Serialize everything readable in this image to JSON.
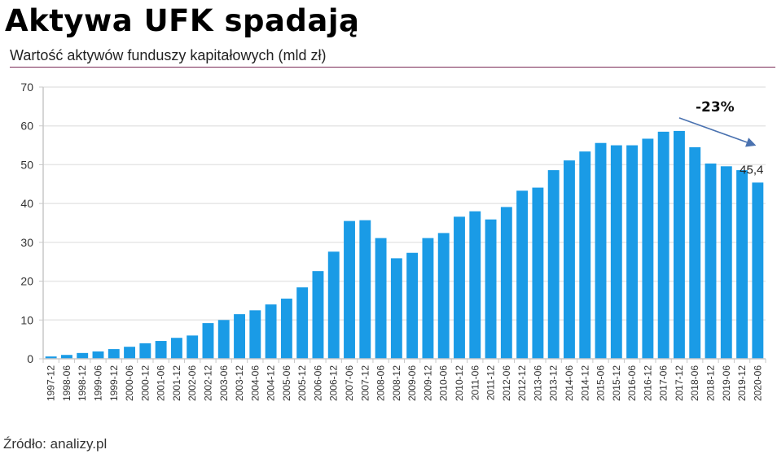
{
  "header": {
    "title": "Aktywa UFK spadają",
    "subtitle": "Wartość aktywów funduszy kapitałowych (mld zł)"
  },
  "footer": {
    "source": "Źródło: analizy.pl"
  },
  "colors": {
    "bar": "#1a9be6",
    "grid": "#e6e6e6",
    "axis": "#c8c8c8",
    "arrow": "#4a72b0",
    "rule": "#7a2a55"
  },
  "chart_data": {
    "type": "bar",
    "title": "Aktywa UFK spadają",
    "subtitle": "Wartość aktywów funduszy kapitałowych (mld zł)",
    "xlabel": "",
    "ylabel": "",
    "ylim": [
      0,
      70
    ],
    "yticks": [
      0,
      10,
      20,
      30,
      40,
      50,
      60,
      70
    ],
    "grid": true,
    "categories": [
      "1997-12",
      "1998-06",
      "1998-12",
      "1999-06",
      "1999-12",
      "2000-06",
      "2000-12",
      "2001-06",
      "2001-12",
      "2002-06",
      "2002-12",
      "2003-06",
      "2003-12",
      "2004-06",
      "2004-12",
      "2005-06",
      "2005-12",
      "2006-06",
      "2006-12",
      "2007-06",
      "2007-12",
      "2008-06",
      "2008-12",
      "2009-06",
      "2009-12",
      "2010-06",
      "2010-12",
      "2011-06",
      "2011-12",
      "2012-06",
      "2012-12",
      "2013-06",
      "2013-12",
      "2014-06",
      "2014-12",
      "2015-06",
      "2015-12",
      "2016-06",
      "2016-12",
      "2017-06",
      "2017-12",
      "2018-06",
      "2018-12",
      "2019-06",
      "2019-12",
      "2020-06"
    ],
    "values": [
      0.6,
      1.0,
      1.5,
      1.9,
      2.5,
      3.1,
      4.0,
      4.6,
      5.4,
      6.0,
      9.2,
      10.0,
      11.5,
      12.5,
      14.0,
      15.5,
      18.4,
      22.6,
      27.6,
      35.5,
      35.7,
      31.1,
      25.9,
      27.3,
      31.1,
      32.4,
      36.6,
      38.0,
      35.9,
      39.1,
      43.3,
      44.1,
      48.6,
      51.1,
      53.4,
      55.6,
      55.0,
      55.0,
      56.7,
      58.5,
      58.7,
      54.5,
      50.3,
      49.6,
      48.6,
      45.4
    ],
    "annotations": [
      {
        "text": "-23%",
        "type": "arrow",
        "from_category": "2017-12",
        "to_category": "2020-06"
      },
      {
        "text": "45,4",
        "type": "data-label",
        "category": "2020-06"
      }
    ]
  }
}
